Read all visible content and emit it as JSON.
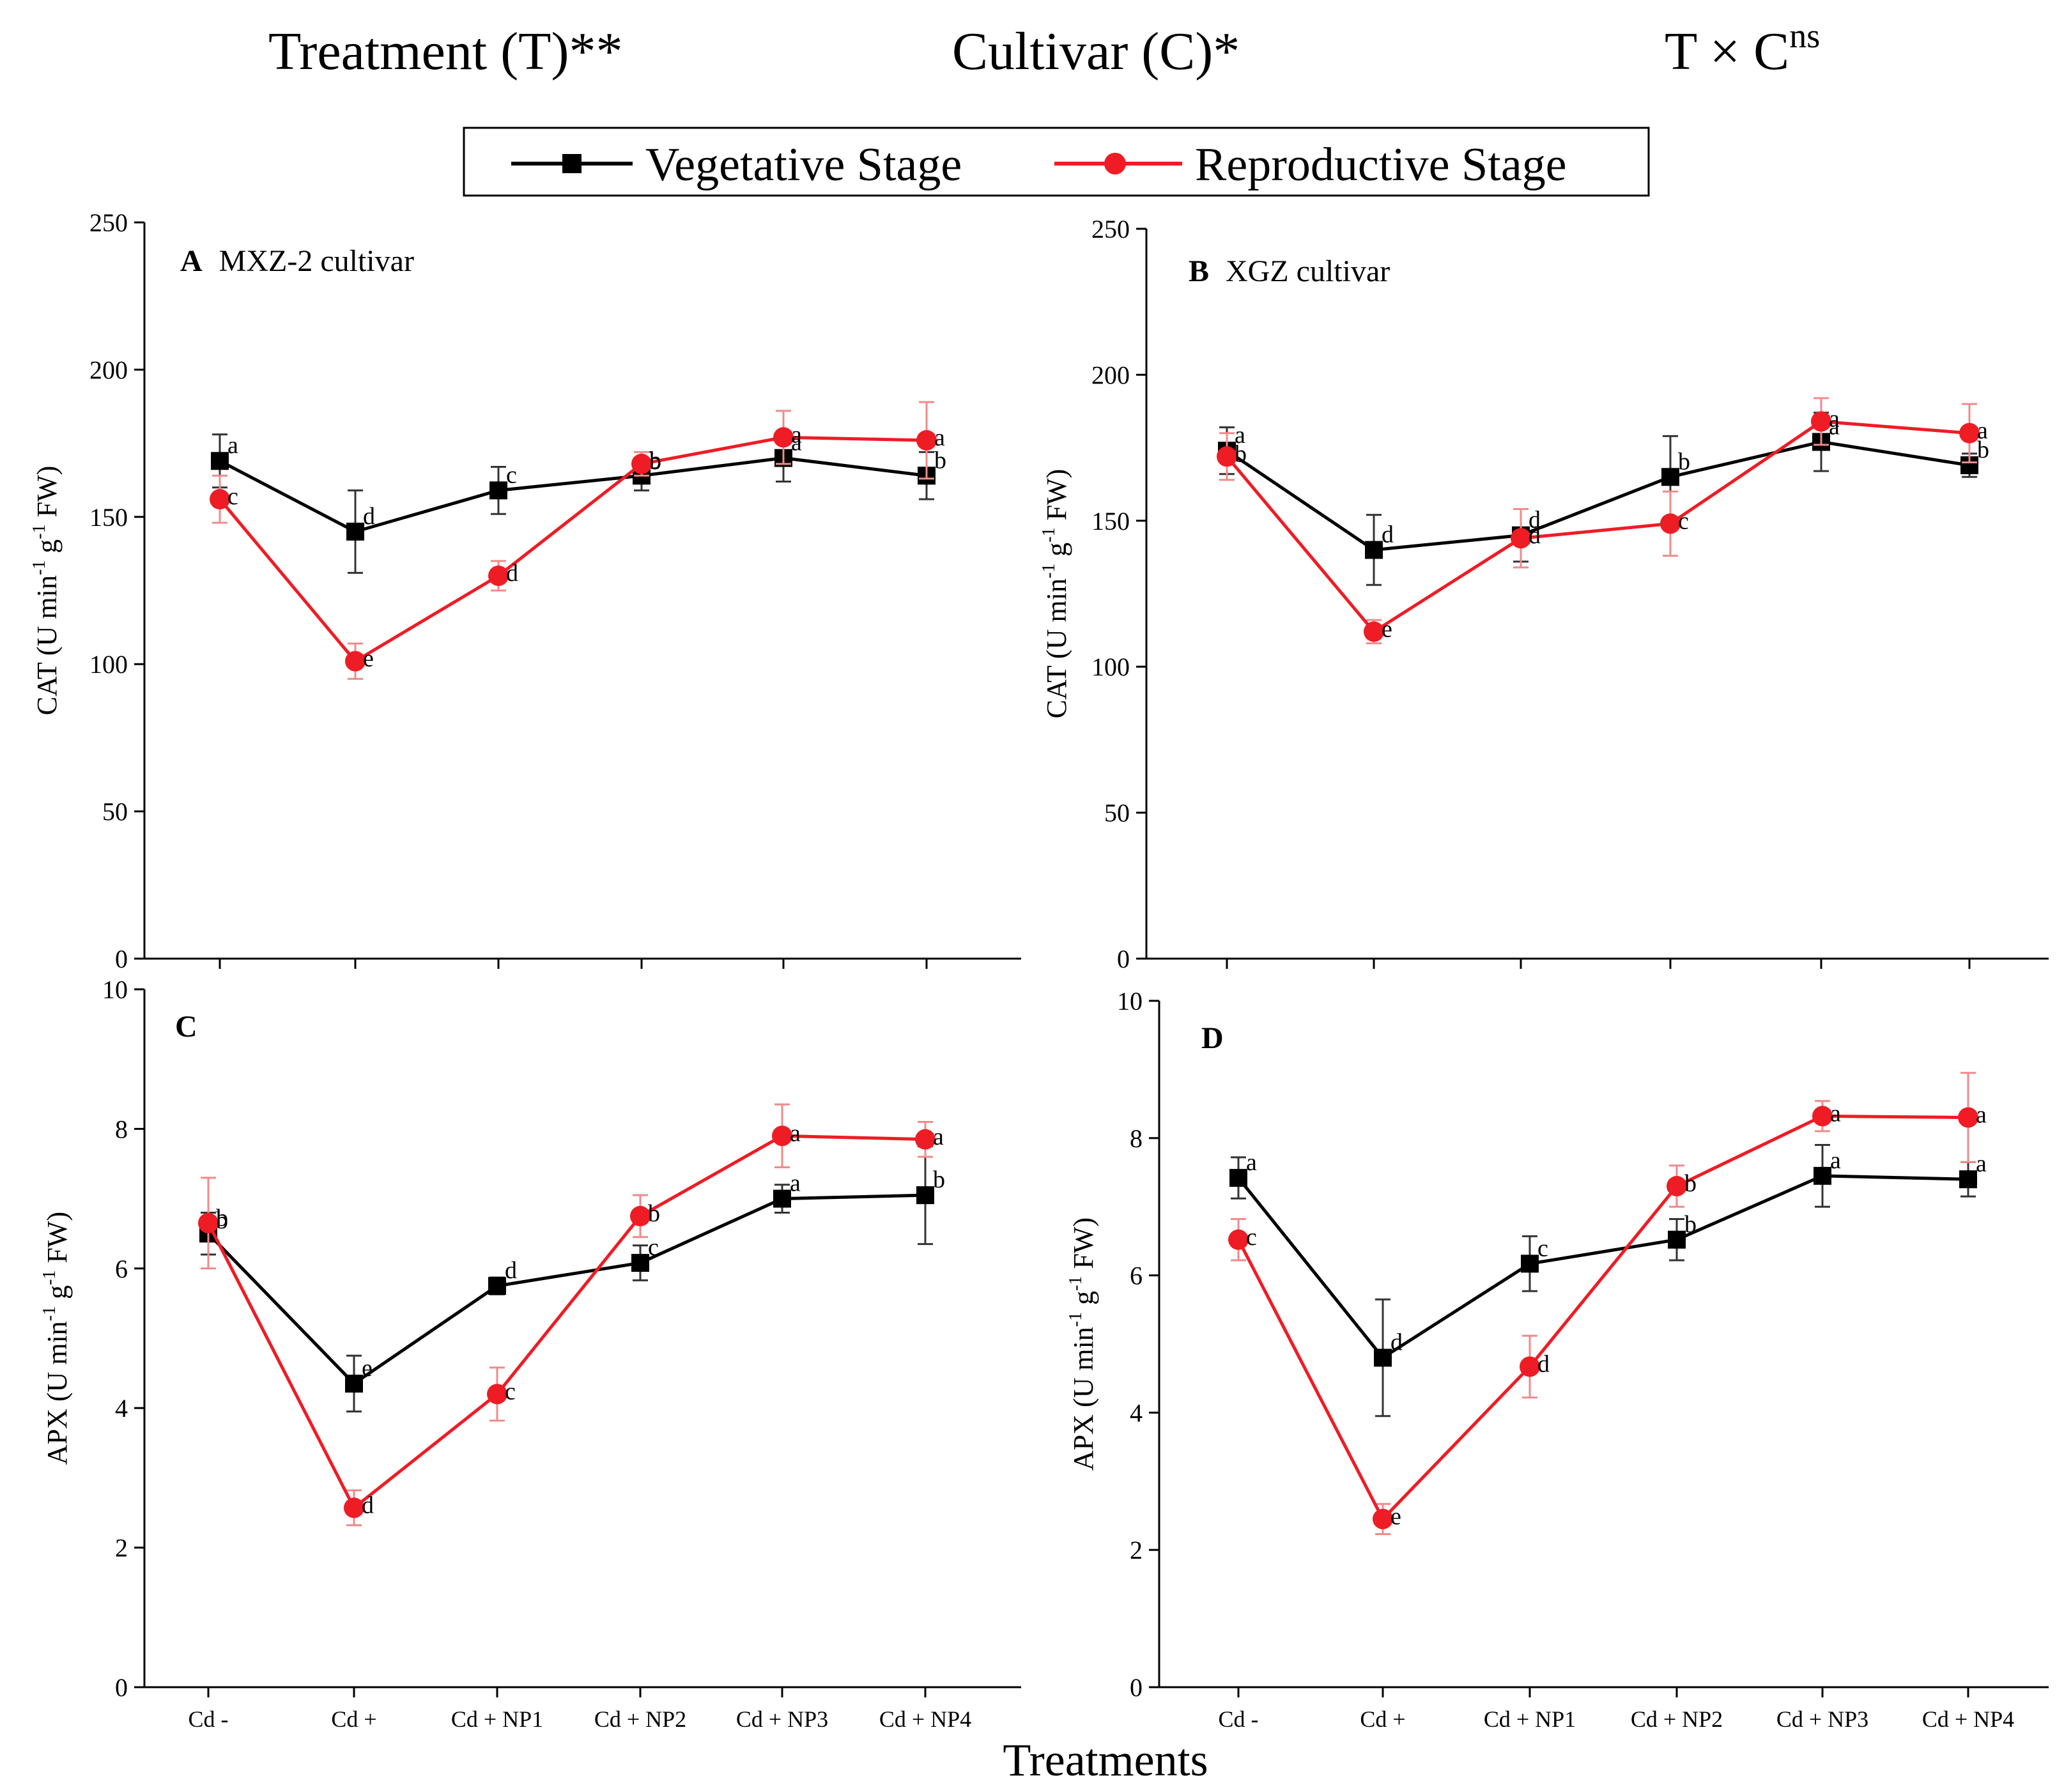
{
  "header": {
    "treatment": "Treatment (T)**",
    "cultivar": "Cultivar (C)*",
    "interaction_base": "T × C",
    "interaction_sup": "ns"
  },
  "legend": {
    "vegetative": "Vegetative Stage",
    "reproductive": "Reproductive Stage"
  },
  "colors": {
    "vegetative": "#000000",
    "reproductive": "#ee1c25",
    "error_reproductive": "#f08a8a",
    "error_vegetative": "#333333"
  },
  "xlabel": "Treatments",
  "chart_data": [
    {
      "type": "line",
      "panel": "A",
      "title": "MXZ-2   cultivar",
      "ylabel": "CAT (U min-1 g-1 FW)",
      "ylabel_parts": [
        "CAT (U min",
        "-1",
        " g",
        "-1",
        " FW)"
      ],
      "ylim": [
        0,
        250
      ],
      "yticks": [
        0,
        50,
        100,
        150,
        200,
        250
      ],
      "categories": [
        "Cd -",
        "Cd +",
        "Cd + NP1",
        "Cd + NP2",
        "Cd + NP3",
        "Cd + NP4"
      ],
      "series": [
        {
          "name": "Vegetative Stage",
          "values": [
            169,
            145,
            159,
            164,
            170,
            164
          ],
          "errors": [
            9,
            14,
            8,
            5,
            8,
            8
          ],
          "letters": [
            "a",
            "d",
            "c",
            "b",
            "a",
            "b"
          ]
        },
        {
          "name": "Reproductive Stage",
          "values": [
            156,
            101,
            130,
            168,
            177,
            176
          ],
          "errors": [
            8,
            6,
            5,
            4,
            9,
            13
          ],
          "letters": [
            "c",
            "e",
            "d",
            "b",
            "a",
            "a"
          ]
        }
      ]
    },
    {
      "type": "line",
      "panel": "B",
      "title": "XGZ  cultivar",
      "ylabel": "CAT (U min-1 g-1 FW)",
      "ylabel_parts": [
        "CAT (U min",
        "-1",
        " g",
        "-1",
        " FW)"
      ],
      "ylim": [
        0,
        250
      ],
      "yticks": [
        0,
        50,
        100,
        150,
        200,
        250
      ],
      "categories": [
        "Cd -",
        "Cd +",
        "Cd + NP1",
        "Cd + NP2",
        "Cd + NP3",
        "Cd + NP4"
      ],
      "series": [
        {
          "name": "Vegetative Stage",
          "values": [
            174,
            140,
            145,
            165,
            177,
            169
          ],
          "errors": [
            8,
            12,
            9,
            14,
            10,
            4
          ],
          "letters": [
            "a",
            "d",
            "d",
            "b",
            "a",
            "b"
          ]
        },
        {
          "name": "Reproductive Stage",
          "values": [
            172,
            112,
            144,
            149,
            184,
            180
          ],
          "errors": [
            8,
            4,
            10,
            11,
            8,
            10
          ],
          "letters": [
            "b",
            "e",
            "d",
            "c",
            "a",
            "a"
          ]
        }
      ]
    },
    {
      "type": "line",
      "panel": "C",
      "title": "",
      "ylabel": "APX (U min-1 g-1 FW)",
      "ylabel_parts": [
        "APX (U min",
        "-1",
        " g",
        "-1",
        " FW)"
      ],
      "ylim": [
        0,
        10
      ],
      "yticks": [
        0,
        2,
        4,
        6,
        8,
        10
      ],
      "categories": [
        "Cd -",
        "Cd +",
        "Cd + NP1",
        "Cd + NP2",
        "Cd + NP3",
        "Cd + NP4"
      ],
      "series": [
        {
          "name": "Vegetative Stage",
          "values": [
            6.5,
            4.35,
            5.75,
            6.08,
            7.0,
            7.05
          ],
          "errors": [
            0.3,
            0.4,
            0.12,
            0.25,
            0.2,
            0.7
          ],
          "letters": [
            "b",
            "e",
            "d",
            "c",
            "a",
            "b"
          ]
        },
        {
          "name": "Reproductive Stage",
          "values": [
            6.65,
            2.57,
            4.2,
            6.75,
            7.9,
            7.85
          ],
          "errors": [
            0.65,
            0.25,
            0.38,
            0.3,
            0.45,
            0.25
          ],
          "letters": [
            "b",
            "d",
            "c",
            "b",
            "a",
            "a"
          ]
        }
      ]
    },
    {
      "type": "line",
      "panel": "D",
      "title": "",
      "ylabel": "APX (U min-1 g-1 FW)",
      "ylabel_parts": [
        "APX (U min",
        "-1",
        " g",
        "-1",
        " FW)"
      ],
      "ylim": [
        0,
        10
      ],
      "yticks": [
        0,
        2,
        4,
        6,
        8,
        10
      ],
      "categories": [
        "Cd -",
        "Cd +",
        "Cd + NP1",
        "Cd + NP2",
        "Cd + NP3",
        "Cd + NP4"
      ],
      "series": [
        {
          "name": "Vegetative Stage",
          "values": [
            7.42,
            4.8,
            6.17,
            6.52,
            7.45,
            7.4
          ],
          "errors": [
            0.3,
            0.85,
            0.4,
            0.3,
            0.45,
            0.25
          ],
          "letters": [
            "a",
            "d",
            "c",
            "b",
            "a",
            "a"
          ]
        },
        {
          "name": "Reproductive Stage",
          "values": [
            6.52,
            2.45,
            4.67,
            7.3,
            8.32,
            8.3
          ],
          "errors": [
            0.3,
            0.22,
            0.45,
            0.3,
            0.22,
            0.65
          ],
          "letters": [
            "c",
            "e",
            "d",
            "b",
            "a",
            "a"
          ]
        }
      ]
    }
  ]
}
